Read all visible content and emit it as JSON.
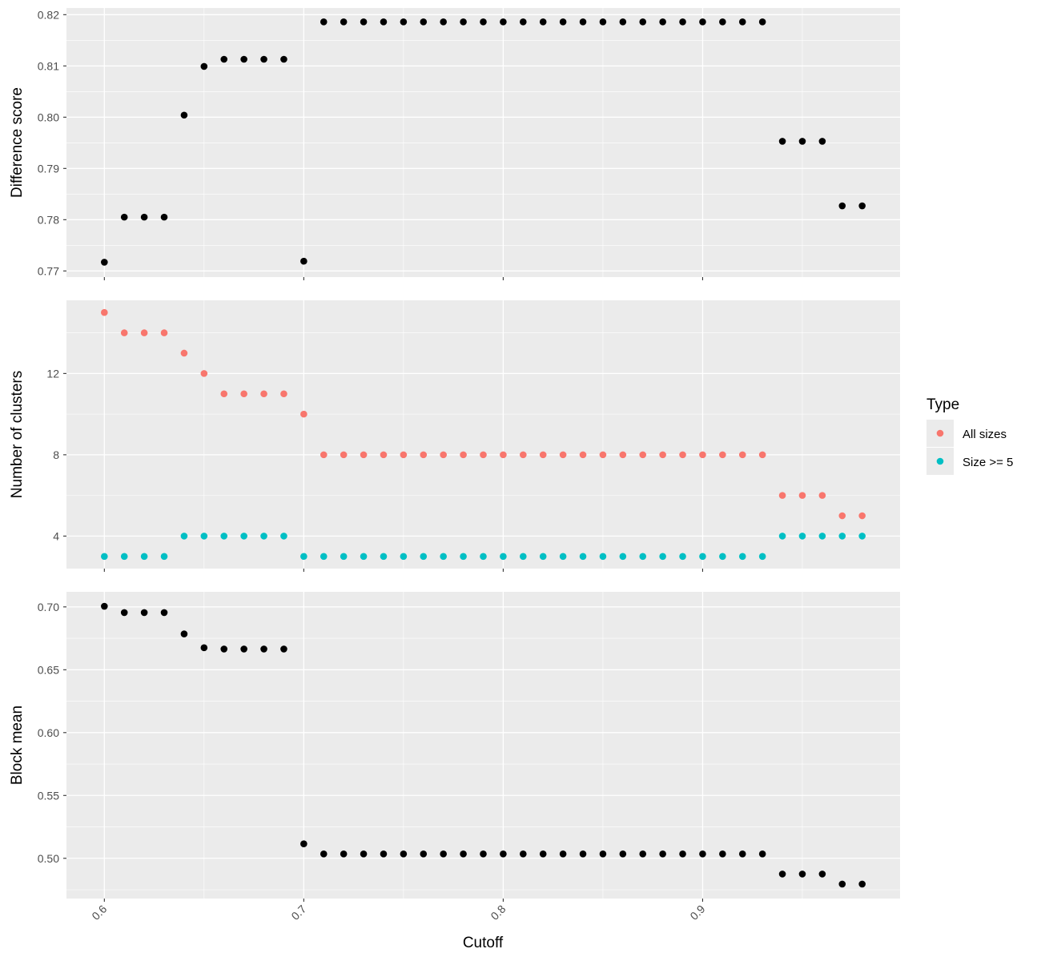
{
  "chart_data": {
    "type": "scatter",
    "xlabel": "Cutoff",
    "x_ticks": [
      0.6,
      0.7,
      0.8,
      0.9
    ],
    "x_tick_labels": [
      "0.6",
      "0.7",
      "0.8",
      "0.9"
    ],
    "xlim": [
      0.581,
      0.999
    ],
    "x": [
      0.6,
      0.61,
      0.62,
      0.63,
      0.64,
      0.65,
      0.66,
      0.67,
      0.68,
      0.69,
      0.7,
      0.71,
      0.72,
      0.73,
      0.74,
      0.75,
      0.76,
      0.77,
      0.78,
      0.79,
      0.8,
      0.81,
      0.82,
      0.83,
      0.84,
      0.85,
      0.86,
      0.87,
      0.88,
      0.89,
      0.9,
      0.91,
      0.92,
      0.93,
      0.94,
      0.95,
      0.96,
      0.97,
      0.98
    ],
    "panels": [
      {
        "ylabel": "Difference score",
        "ylim": [
          0.7688,
          0.8213
        ],
        "y_ticks": [
          0.77,
          0.78,
          0.79,
          0.8,
          0.81,
          0.82
        ],
        "y_tick_labels": [
          "0.77",
          "0.78",
          "0.79",
          "0.80",
          "0.81",
          "0.82"
        ],
        "series": [
          {
            "color": "#000000",
            "values": [
              0.7717,
              0.7805,
              0.7805,
              0.7805,
              0.8004,
              0.8099,
              0.8113,
              0.8113,
              0.8113,
              0.8113,
              0.7719,
              0.8186,
              0.8186,
              0.8186,
              0.8186,
              0.8186,
              0.8186,
              0.8186,
              0.8186,
              0.8186,
              0.8186,
              0.8186,
              0.8186,
              0.8186,
              0.8186,
              0.8186,
              0.8186,
              0.8186,
              0.8186,
              0.8186,
              0.8186,
              0.8186,
              0.8186,
              0.8186,
              0.7953,
              0.7953,
              0.7953,
              0.7827,
              0.7827
            ]
          }
        ]
      },
      {
        "ylabel": "Number of clusters",
        "ylim": [
          2.4,
          15.6
        ],
        "y_ticks": [
          4,
          8,
          12
        ],
        "y_tick_labels": [
          "4",
          "8",
          "12"
        ],
        "series": [
          {
            "name": "All sizes",
            "color": "#f8766d",
            "values": [
              15,
              14,
              14,
              14,
              13,
              12,
              11,
              11,
              11,
              11,
              10,
              8,
              8,
              8,
              8,
              8,
              8,
              8,
              8,
              8,
              8,
              8,
              8,
              8,
              8,
              8,
              8,
              8,
              8,
              8,
              8,
              8,
              8,
              8,
              6,
              6,
              6,
              5,
              5
            ]
          },
          {
            "name": "Size >= 5",
            "color": "#00bfc4",
            "values": [
              3,
              3,
              3,
              3,
              4,
              4,
              4,
              4,
              4,
              4,
              3,
              3,
              3,
              3,
              3,
              3,
              3,
              3,
              3,
              3,
              3,
              3,
              3,
              3,
              3,
              3,
              3,
              3,
              3,
              3,
              3,
              3,
              3,
              3,
              4,
              4,
              4,
              4,
              4
            ]
          }
        ]
      },
      {
        "ylabel": "Block mean",
        "ylim": [
          0.468,
          0.712
        ],
        "y_ticks": [
          0.5,
          0.55,
          0.6,
          0.65,
          0.7
        ],
        "y_tick_labels": [
          "0.50",
          "0.55",
          "0.60",
          "0.65",
          "0.70"
        ],
        "series": [
          {
            "color": "#000000",
            "values": [
              0.7005,
              0.6955,
              0.6955,
              0.6955,
              0.6785,
              0.6675,
              0.6665,
              0.6665,
              0.6665,
              0.6665,
              0.5115,
              0.5035,
              0.5035,
              0.5035,
              0.5035,
              0.5035,
              0.5035,
              0.5035,
              0.5035,
              0.5035,
              0.5035,
              0.5035,
              0.5035,
              0.5035,
              0.5035,
              0.5035,
              0.5035,
              0.5035,
              0.5035,
              0.5035,
              0.5035,
              0.5035,
              0.5035,
              0.5035,
              0.4875,
              0.4875,
              0.4875,
              0.4795,
              0.4795
            ]
          }
        ]
      }
    ],
    "legend": {
      "title": "Type",
      "placement": "right",
      "entries": [
        {
          "label": "All sizes",
          "color": "#f8766d"
        },
        {
          "label": "Size >= 5",
          "color": "#00bfc4"
        }
      ]
    },
    "panel_background": "#ebebeb",
    "grid": true,
    "grid_color": "#ffffff"
  }
}
